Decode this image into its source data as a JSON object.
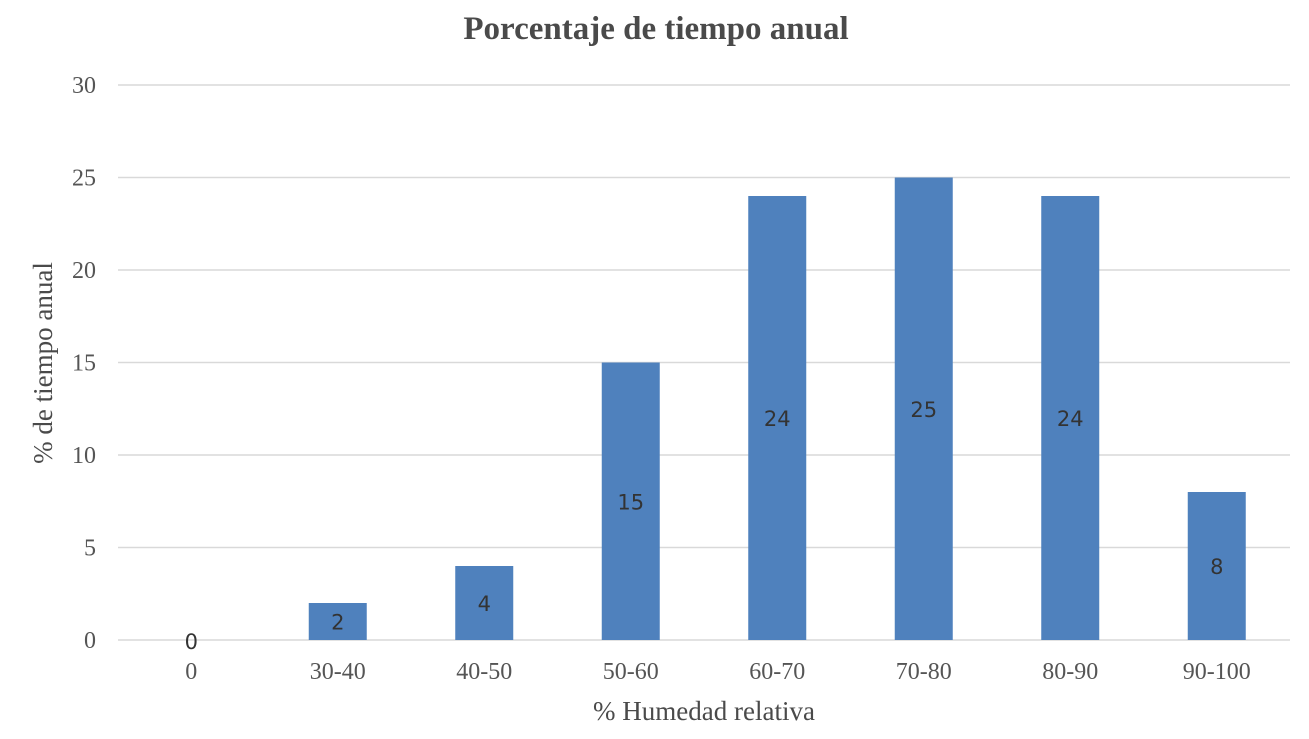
{
  "chart_data": {
    "type": "bar",
    "title": "Porcentaje de tiempo anual",
    "xlabel": "% Humedad relativa",
    "ylabel": "% de tiempo anual",
    "categories": [
      "0",
      "30-40",
      "40-50",
      "50-60",
      "60-70",
      "70-80",
      "80-90",
      "90-100"
    ],
    "values": [
      0,
      2,
      4,
      15,
      24,
      25,
      24,
      8
    ],
    "data_labels": [
      "0",
      "2",
      "4",
      "15",
      "24",
      "25",
      "24",
      "8"
    ],
    "ylim": [
      0,
      30
    ],
    "yticks": [
      "0",
      "5",
      "10",
      "15",
      "20",
      "25",
      "30"
    ],
    "grid": true,
    "legend": "none",
    "bar_color": "#4f81bd"
  }
}
